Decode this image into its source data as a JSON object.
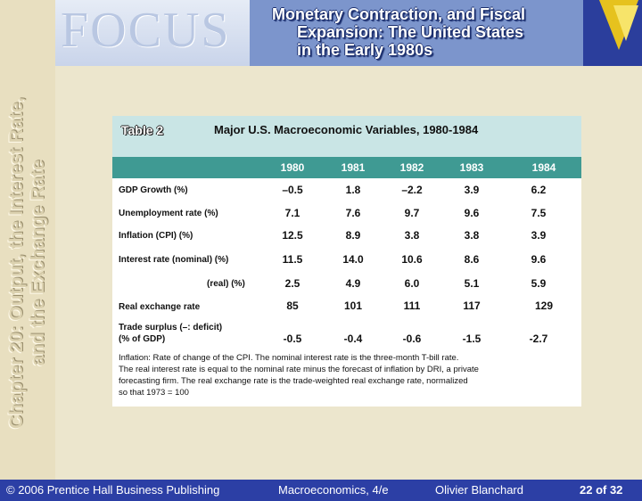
{
  "header": {
    "logo_text": "FOCUS",
    "title_lines": [
      "Monetary Contraction, and Fiscal",
      "Expansion: The United States",
      "in the Early 1980s"
    ]
  },
  "sidebar": {
    "chapter_lines": [
      "Chapter 20: Output, the Interest Rate,",
      "and the Exchange Rate"
    ]
  },
  "table": {
    "label": "Table 2",
    "title": "Major U.S. Macroeconomic Variables, 1980-1984",
    "years": [
      "1980",
      "1981",
      "1982",
      "1983",
      "1984"
    ],
    "rows": [
      {
        "label": "GDP Growth (%)",
        "values": [
          "–0.5",
          "1.8",
          "–2.2",
          "3.9",
          "6.2"
        ]
      },
      {
        "label": "Unemployment rate (%)",
        "values": [
          "7.1",
          "7.6",
          "9.7",
          "9.6",
          "7.5"
        ]
      },
      {
        "label": "Inflation (CPI) (%)",
        "values": [
          "12.5",
          "8.9",
          "3.8",
          "3.8",
          "3.9"
        ]
      },
      {
        "label": "Interest rate (nominal) (%)",
        "values": [
          "11.5",
          "14.0",
          "10.6",
          "8.6",
          "9.6"
        ]
      },
      {
        "label": "(real) (%)",
        "values": [
          "2.5",
          "4.9",
          "6.0",
          "5.1",
          "5.9"
        ]
      },
      {
        "label": "Real exchange rate",
        "values": [
          "85",
          "101",
          "111",
          "117",
          "129"
        ]
      },
      {
        "label_lines": [
          "Trade surplus (–: deficit)",
          "(% of GDP)"
        ],
        "values": [
          "-0.5",
          "-0.4",
          "-0.6",
          "-1.5",
          "-2.7"
        ]
      }
    ],
    "footnote_lines": [
      "Inflation:  Rate of change of the CPI.  The nominal interest rate is the three-month T-bill rate.",
      "The real interest rate is equal to the nominal rate minus the forecast of inflation by DRI, a private",
      "forecasting firm.  The real exchange rate is the trade-weighted real exchange rate, normalized",
      "so that 1973 =  100"
    ]
  },
  "footer": {
    "copyright": "© 2006 Prentice Hall Business Publishing",
    "book": "Macroeconomics, 4/e",
    "author": "Olivier Blanchard",
    "page": "22 of 32"
  },
  "colors": {
    "background": "#ece6cd",
    "header_blue": "#7c95cc",
    "footer_blue": "#2c3fa5",
    "table_header_band": "#c9e5e5",
    "year_band": "#3f9a93"
  }
}
